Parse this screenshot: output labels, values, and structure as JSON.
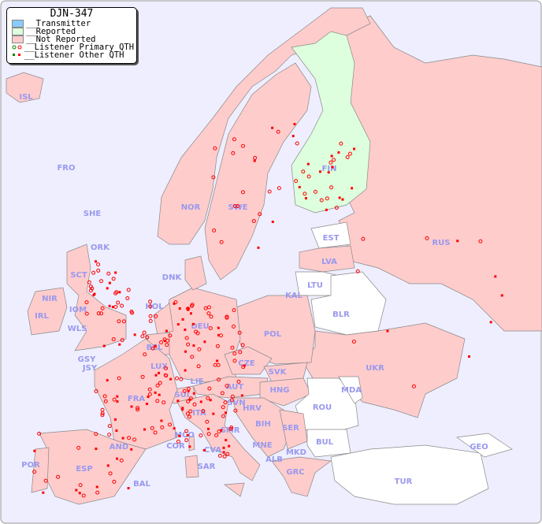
{
  "title": "DJN-347",
  "legend": [
    {
      "label": "__Transmitter",
      "color": "#88ccff"
    },
    {
      "label": "__Reported",
      "color": "#ddffdd"
    },
    {
      "label": "__Not Reported",
      "color": "#ffcccc"
    },
    {
      "label": "__Listener Primary QTH",
      "marker": "circle"
    },
    {
      "label": "__Listener Other QTH",
      "marker": "square"
    }
  ],
  "colors": {
    "sea": "#eeeeff",
    "not_reported": "#ffcccc",
    "reported": "#ddffdd",
    "other": "#ffffff",
    "listener": "#ff0000",
    "listener_reported": "#008800"
  },
  "countries": [
    "ISL",
    "FRO",
    "SHE",
    "ORK",
    "NOR",
    "SWE",
    "FIN",
    "EST",
    "LVA",
    "LTU",
    "RUS",
    "DNK",
    "HOL",
    "KAL",
    "BLR",
    "IRL",
    "NIR",
    "SCT",
    "WLS",
    "IOM",
    "GSY",
    "JSY",
    "BEL",
    "DEU",
    "POL",
    "LUX",
    "CZE",
    "SVK",
    "UKR",
    "FRA",
    "LIE",
    "AUT",
    "HNG",
    "MDA",
    "SUI",
    "SVN",
    "HRV",
    "ROU",
    "ITA",
    "BIH",
    "SER",
    "SMR",
    "MCO",
    "COR",
    "BUL",
    "MNE",
    "ALB",
    "MKD",
    "AND",
    "CVA",
    "GEO",
    "POR",
    "ESP",
    "SAR",
    "GRC",
    "BAL",
    "TUR"
  ]
}
